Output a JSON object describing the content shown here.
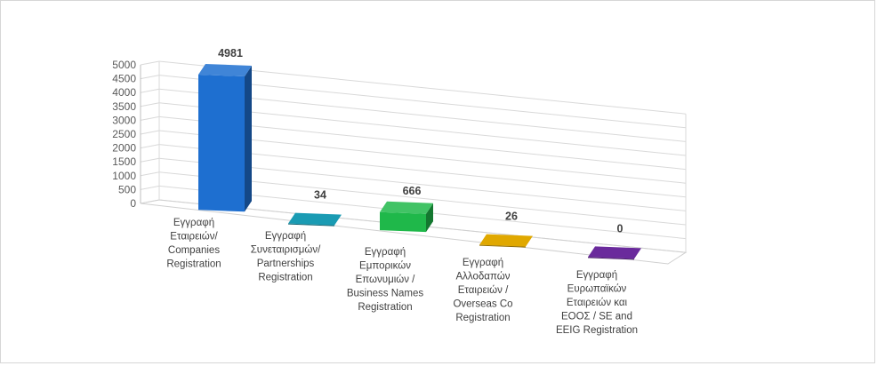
{
  "chart_data": {
    "type": "bar",
    "title": "",
    "xlabel": "",
    "ylabel": "",
    "categories": [
      [
        "Εγγραφή",
        "Εταιρειών/",
        "Companies",
        "Registration"
      ],
      [
        "Εγγραφή",
        "Συνεταιρισμών/",
        "Partnerships",
        "Registration"
      ],
      [
        "Εγγραφή",
        "Εμπορικών",
        "Επωνυμιών /",
        "Business Names",
        "Registration"
      ],
      [
        "Εγγραφή",
        "Αλλοδαπών",
        "Εταιρειών /",
        "Overseas Co",
        "Registration"
      ],
      [
        "Εγγραφή",
        "Ευρωπαϊκών",
        "Εταιρειών και",
        "ΕΟΟΣ / SE and",
        "EEIG Registration"
      ]
    ],
    "values": [
      4981,
      34,
      666,
      26,
      0
    ],
    "data_labels": [
      "4981",
      "34",
      "666",
      "26",
      "0"
    ],
    "colors": [
      "#1e6fd0",
      "#1a9bb3",
      "#1fb84a",
      "#e0a800",
      "#6a2a9c"
    ],
    "ylim": [
      0,
      5000
    ],
    "yticks": [
      "0",
      "500",
      "1000",
      "1500",
      "2000",
      "2500",
      "3000",
      "3500",
      "4000",
      "4500",
      "5000"
    ],
    "grid": true,
    "legend": "none",
    "style": "3d-column"
  }
}
